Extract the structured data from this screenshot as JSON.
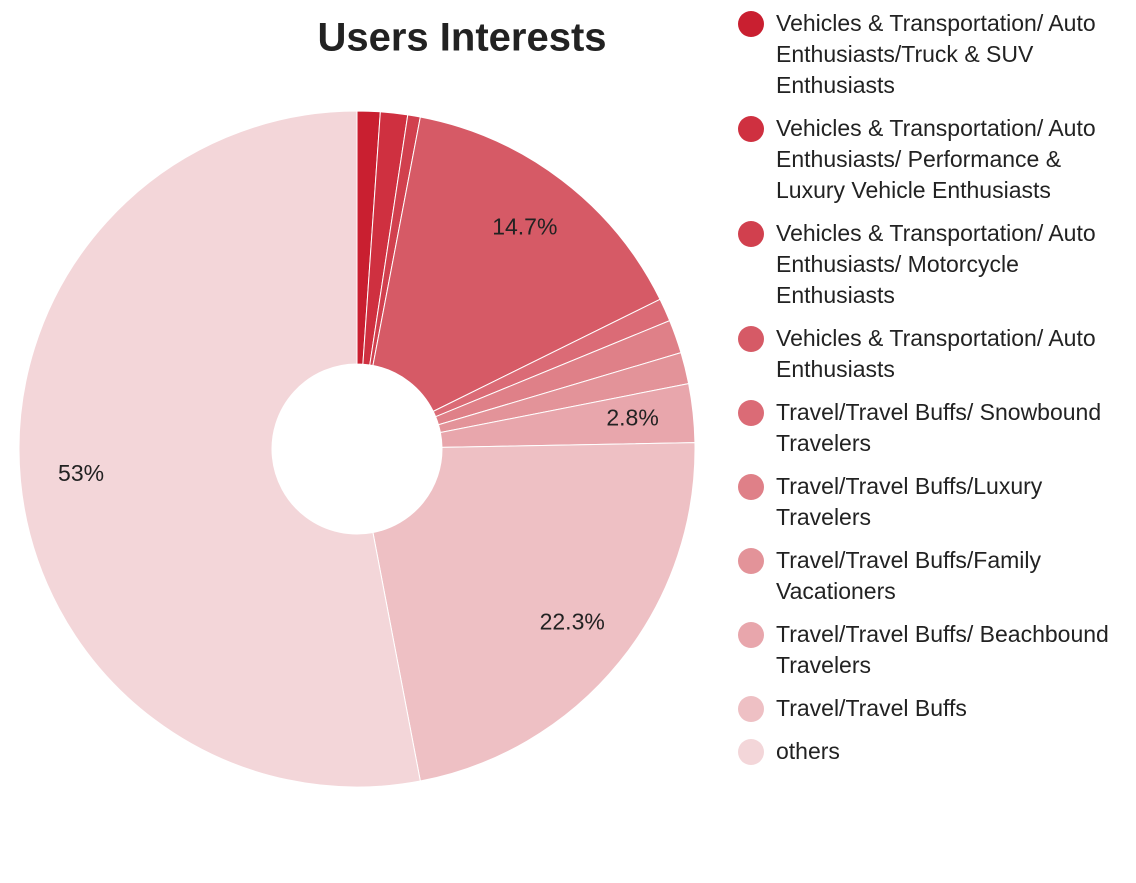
{
  "chart_data": {
    "type": "pie",
    "title": "Users Interests",
    "categories": [
      "Vehicles & Transportation/ Auto Enthusiasts/Truck & SUV Enthusiasts",
      "Vehicles & Transportation/ Auto Enthusiasts/ Performance & Luxury Vehicle Enthusiasts",
      "Vehicles & Transportation/ Auto Enthusiasts/ Motorcycle Enthusiasts",
      "Vehicles & Transportation/ Auto Enthusiasts",
      "Travel/Travel Buffs/ Snowbound Travelers",
      "Travel/Travel Buffs/Luxury Travelers",
      "Travel/Travel Buffs/Family Vacationers",
      "Travel/Travel Buffs/ Beachbound Travelers",
      "Travel/Travel Buffs",
      "others"
    ],
    "values": [
      1.1,
      1.3,
      0.6,
      14.7,
      1.1,
      1.6,
      1.5,
      2.8,
      22.3,
      53
    ],
    "value_labels": [
      null,
      null,
      null,
      "14.7%",
      null,
      null,
      null,
      "2.8%",
      "22.3%",
      "53%"
    ],
    "colors": [
      "#c91f30",
      "#cf3040",
      "#d1404e",
      "#d65a66",
      "#db6b76",
      "#df8088",
      "#e39399",
      "#e8a6ac",
      "#eec0c4",
      "#f3d6d9"
    ],
    "legend": "right",
    "donut": true
  }
}
